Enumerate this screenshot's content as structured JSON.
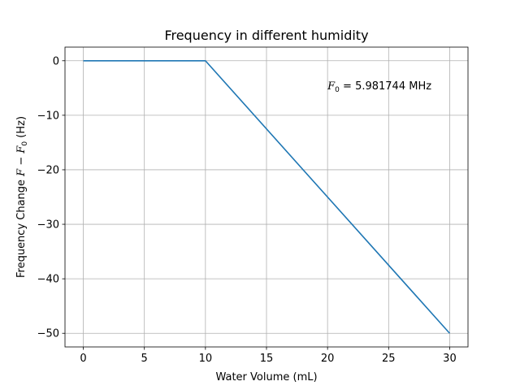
{
  "chart_data": {
    "type": "line",
    "title": "Frequency in different humidity",
    "xlabel": "Water Volume (mL)",
    "ylabel": {
      "prefix": "Frequency Change ",
      "var_a": "F",
      "op": " − ",
      "var_b": "F",
      "sub": "0",
      "suffix": " (Hz)"
    },
    "xlim": [
      -1.5,
      31.5
    ],
    "ylim": [
      -52.5,
      2.5
    ],
    "xticks": [
      0,
      5,
      10,
      15,
      20,
      25,
      30
    ],
    "xtick_labels": [
      "0",
      "5",
      "10",
      "15",
      "20",
      "25",
      "30"
    ],
    "yticks": [
      0,
      -10,
      -20,
      -30,
      -40,
      -50
    ],
    "ytick_labels": [
      "0",
      "−10",
      "−20",
      "−30",
      "−40",
      "−50"
    ],
    "grid": true,
    "series": [
      {
        "color": "#1f77b4",
        "x": [
          0,
          10,
          30
        ],
        "y": [
          0,
          0,
          -50
        ]
      }
    ],
    "annotation": {
      "var": "F",
      "sub": "0",
      "text": " = 5.981744 MHz",
      "x": 20,
      "y": -4.5
    }
  }
}
